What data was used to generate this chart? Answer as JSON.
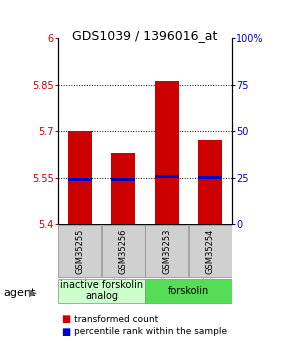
{
  "title": "GDS1039 / 1396016_at",
  "samples": [
    "GSM35255",
    "GSM35256",
    "GSM35253",
    "GSM35254"
  ],
  "bar_bottoms": [
    5.4,
    5.4,
    5.4,
    5.4
  ],
  "bar_tops": [
    5.7,
    5.63,
    5.86,
    5.67
  ],
  "percentile_values": [
    5.545,
    5.545,
    5.555,
    5.55
  ],
  "ylim": [
    5.4,
    6.0
  ],
  "yticks_left": [
    5.4,
    5.55,
    5.7,
    5.85,
    6.0
  ],
  "yticks_right": [
    0,
    25,
    50,
    75,
    100
  ],
  "ytick_labels_left": [
    "5.4",
    "5.55",
    "5.7",
    "5.85",
    "6"
  ],
  "ytick_labels_right": [
    "0",
    "25",
    "50",
    "75",
    "100%"
  ],
  "gridlines": [
    5.55,
    5.7,
    5.85
  ],
  "bar_color": "#cc0000",
  "percentile_color": "#0000cc",
  "bar_width": 0.55,
  "group_labels": [
    "inactive forskolin\nanalog",
    "forskolin"
  ],
  "group_colors": [
    "#ccffcc",
    "#55dd55"
  ],
  "legend_items": [
    {
      "label": "transformed count",
      "color": "#cc0000"
    },
    {
      "label": "percentile rank within the sample",
      "color": "#0000cc"
    }
  ],
  "title_fontsize": 9,
  "tick_fontsize": 7,
  "sample_fontsize": 6,
  "group_fontsize": 7,
  "agent_fontsize": 8,
  "legend_fontsize": 6.5
}
